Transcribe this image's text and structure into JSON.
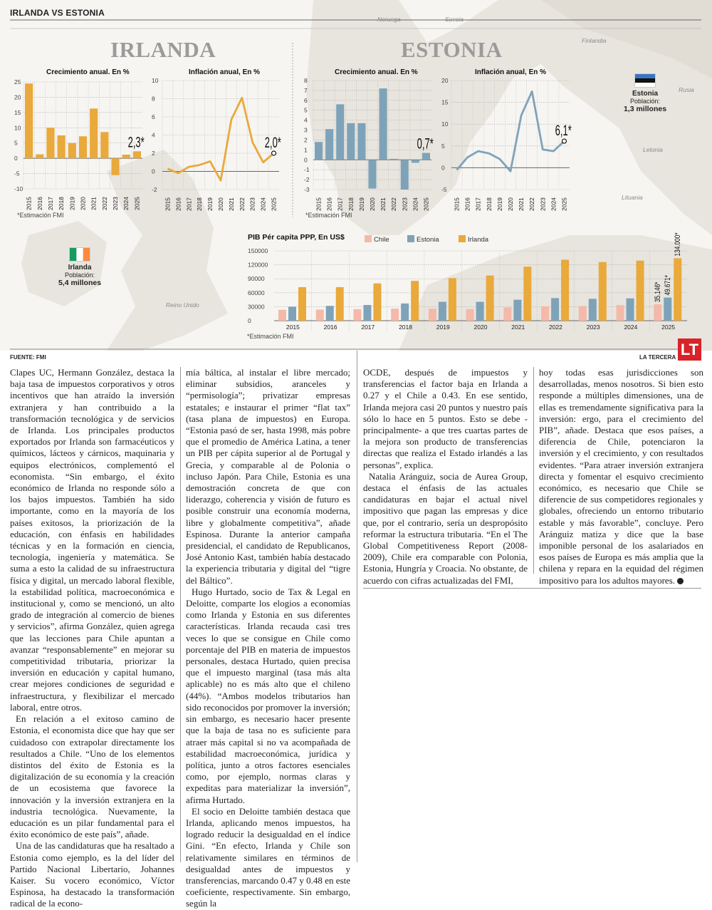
{
  "header": {
    "section": "IRLANDA VS ESTONIA",
    "left_title": "IRLANDA",
    "right_title": "ESTONIA"
  },
  "map_labels": {
    "norway": "Noruega",
    "sweden": "Suecia",
    "finland": "Finlandia",
    "russia": "Rusia",
    "latvia": "Letonia",
    "lithuania": "Lituania",
    "uk": "Reino Unido"
  },
  "estonia_box": {
    "name": "Estonia",
    "pop_label": "Población:",
    "pop_value": "1,3 millones"
  },
  "ireland_box": {
    "name": "Irlanda",
    "pop_label": "Población:",
    "pop_value": "5,4 millones"
  },
  "notes": {
    "irl": "*Estimación FMI",
    "est": "*Estimación FMI",
    "pib": "*Estimación FMI"
  },
  "footer": {
    "source": "FUENTE: FMI",
    "brand": "LA TERCERA",
    "logo": "LT"
  },
  "colors": {
    "irlanda": "#e9a93b",
    "estonia": "#7ea3b9",
    "chile": "#f5b9a9",
    "title_grey": "#9b9b9b",
    "logo_red": "#d8232a"
  },
  "chart_data": [
    {
      "id": "irl_growth",
      "type": "bar",
      "title": "Crecimiento anual. En %",
      "categories": [
        "2015",
        "2016",
        "2017",
        "2018",
        "2019",
        "2020",
        "2021",
        "2022",
        "2023",
        "2024",
        "2025"
      ],
      "values": [
        24.5,
        1.3,
        10,
        7.5,
        5,
        7.2,
        16.3,
        8.6,
        -5.5,
        1.2,
        2.3
      ],
      "ylim": [
        -10,
        25
      ],
      "yticks": [
        25,
        20,
        15,
        10,
        5,
        0,
        -5,
        -10
      ],
      "highlight_label": "2,3*",
      "color": "#e9a93b",
      "grid": true
    },
    {
      "id": "irl_infl",
      "type": "line",
      "title": "Inflación anual, En %",
      "categories": [
        "2015",
        "2016",
        "2017",
        "2018",
        "2019",
        "2020",
        "2021",
        "2022",
        "2023",
        "2024",
        "2025"
      ],
      "values": [
        0.3,
        -0.2,
        0.5,
        0.7,
        1.1,
        -1.0,
        5.7,
        8.1,
        3.2,
        1.0,
        2.0
      ],
      "ylim": [
        -2,
        10
      ],
      "yticks": [
        10,
        8,
        6,
        4,
        2,
        0,
        -2
      ],
      "highlight_label": "2,0*",
      "color": "#e9a93b",
      "grid": true
    },
    {
      "id": "est_growth",
      "type": "bar",
      "title": "Crecimiento anual. En %",
      "categories": [
        "2015",
        "2016",
        "2017",
        "2018",
        "2019",
        "2020",
        "2021",
        "2022",
        "2023",
        "2024",
        "2025"
      ],
      "values": [
        1.8,
        3.1,
        5.6,
        3.7,
        3.7,
        -2.9,
        7.2,
        0.1,
        -3.0,
        -0.3,
        0.7
      ],
      "ylim": [
        -3,
        8
      ],
      "yticks": [
        8,
        7,
        6,
        5,
        4,
        3,
        2,
        1,
        0,
        -1,
        -2,
        -3
      ],
      "highlight_label": "0,7*",
      "color": "#7ea3b9",
      "grid": true
    },
    {
      "id": "est_infl",
      "type": "line",
      "title": "Inflación anual, En %",
      "categories": [
        "2015",
        "2016",
        "2017",
        "2018",
        "2019",
        "2020",
        "2021",
        "2022",
        "2023",
        "2024",
        "2025"
      ],
      "values": [
        -0.5,
        2.4,
        3.8,
        3.3,
        2.0,
        -0.8,
        12.0,
        17.5,
        4.2,
        3.8,
        6.1
      ],
      "ylim": [
        -5,
        20
      ],
      "yticks": [
        20,
        15,
        10,
        5,
        0,
        -5
      ],
      "highlight_label": "6,1*",
      "color": "#7ea3b9",
      "grid": true
    },
    {
      "id": "pib",
      "type": "bar",
      "title": "PIB Pér capita PPP, En US$",
      "categories": [
        "2015",
        "2016",
        "2017",
        "2018",
        "2019",
        "2020",
        "2021",
        "2022",
        "2023",
        "2024",
        "2025"
      ],
      "ylim": [
        0,
        150000
      ],
      "yticks": [
        150000,
        120000,
        90000,
        60000,
        30000,
        0
      ],
      "legend_position": "top",
      "grid": true,
      "series": [
        {
          "name": "Chile",
          "color": "#f5b9a9",
          "values": [
            23500,
            23800,
            24800,
            26000,
            25800,
            25000,
            28500,
            31000,
            31500,
            33500,
            35146
          ],
          "last_label": "35.146*"
        },
        {
          "name": "Estonia",
          "color": "#7ea3b9",
          "values": [
            30000,
            31800,
            33700,
            37000,
            40500,
            40500,
            45000,
            48500,
            47000,
            48000,
            49671
          ],
          "last_label": "49.671*"
        },
        {
          "name": "Irlanda",
          "color": "#e9a93b",
          "values": [
            72000,
            72000,
            80000,
            85500,
            91500,
            97000,
            116000,
            131000,
            126000,
            129000,
            134000
          ],
          "last_label": "134.000*"
        }
      ]
    }
  ],
  "article": {
    "col1": [
      "Clapes UC, Hermann González, destaca la baja tasa de impuestos corporativos y otros incentivos que han atraído la inversión extranjera y han contribuido a la transformación tecnológica y de servicios de Irlanda. Los principales productos exportados por Irlanda son farmacéuticos y químicos, lácteos y cárnicos, maquinaria y equipos electrónicos, complementó el economista. “Sin embargo, el éxito económico de Irlanda no responde sólo a los bajos impuestos. También ha sido importante, como en la mayoría de los países exitosos, la priorización de la educación, con énfasis en habilidades técnicas y en la formación en ciencia, tecnología, ingeniería y matemática. Se suma a esto la calidad de su infraestructura física y digital, un mercado laboral flexible, la estabilidad política, macroeconómica e institucional y, como se mencionó, un alto grado de integración al comercio de bienes y servicios”, afirma González, quien agrega que las lecciones para Chile apuntan a avanzar “responsablemente” en mejorar su competitividad tributaria, priorizar la inversión en educación y capital humano, crear mejores condiciones de seguridad e infraestructura, y flexibilizar el mercado laboral, entre otros.",
      "En relación a el exitoso camino de Estonia, el economista dice que hay que ser cuidadoso con extrapolar directamente los resultados a Chile. “Uno de los elementos distintos del éxito de Estonia es la digitalización de su economía y la creación de un ecosistema que favorece la innovación y la inversión extranjera en la industria tecnológica. Nuevamente, la educación es un pilar fundamental para el éxito económico de este país”, añade.",
      "Una de las candidaturas que ha resaltado a Estonia como ejemplo, es la del líder del Partido Nacional Libertario, Johannes Kaiser. Su vocero económico, Víctor Espinosa, ha destacado la transformación radical de la econo-"
    ],
    "col2": [
      "mía báltica, al instalar el libre mercado; eliminar subsidios, aranceles y “permisología”; privatizar empresas estatales; e instaurar el primer “flat tax” (tasa plana de impuestos) en Europa. “Estonia pasó de ser, hasta 1998, más pobre que el promedio de América Latina, a tener un PIB per cápita superior al de Portugal y Grecia, y comparable al de Polonia o incluso Japón. Para Chile, Estonia es una demostración concreta de que con liderazgo, coherencia y visión de futuro es posible construir una economía moderna, libre y globalmente competitiva”, añade Espinosa. Durante la anterior campaña presidencial, el candidato de Republicanos, José Antonio Kast, también había destacado la experiencia tributaria y digital del “tigre del Báltico”.",
      "Hugo Hurtado, socio de Tax & Legal en Deloitte, comparte los elogios a economías como Irlanda y Estonia en sus diferentes características. Irlanda recauda casi tres veces lo que se consigue en Chile como porcentaje del PIB en materia de impuestos personales, destaca Hurtado, quien precisa que el impuesto marginal (tasa más alta aplicable) no es más alto que el chileno (44%). “Ambos modelos tributarios han sido reconocidos por promover la inversión; sin embargo, es necesario hacer presente que la baja de tasa no es suficiente para atraer más capital si no va acompañada de estabilidad macroeconómica, jurídica y política, junto a otros factores esenciales como, por ejemplo, normas claras y expeditas para materializar la inversión”, afirma Hurtado.",
      "El socio en Deloitte también destaca que Irlanda, aplicando menos impuestos, ha logrado reducir la desigualdad en el índice Gini. “En efecto, Irlanda y Chile son relativamente similares en términos de desigualdad antes de impuestos y transferencias, marcando 0.47 y 0.48 en este coeficiente, respectivamente. Sin embargo, según la"
    ],
    "col3": [
      "OCDE, después de impuestos y transferencias el factor baja en Irlanda a 0.27 y el Chile a 0.43. En ese sentido, Irlanda mejora casi 20 puntos y nuestro país sólo lo hace en 5 puntos. Esto se debe -principalmente- a que tres cuartas partes de la mejora son producto de transferencias directas que realiza el Estado irlandés a las personas”, explica.",
      "Natalia Aránguiz, socia de Aurea Group, destaca el énfasis de las actuales candidaturas en bajar el actual nivel impositivo que pagan las empresas y dice que, por el contrario, sería un despropósito reformar la estructura tributaria. “En el The Global Competitiveness Report (2008-2009), Chile era comparable con Polonia, Estonia, Hungría y Croacia. No obstante, de acuerdo con cifras actualizadas del FMI,"
    ],
    "col4": [
      "hoy todas esas jurisdicciones son desarrolladas, menos nosotros. Si bien esto responde a múltiples dimensiones, una de ellas es tremendamente significativa para la inversión: ergo, para el crecimiento del PIB”, añade. Destaca que esos países, a diferencia de Chile, potenciaron la inversión y el crecimiento, y con resultados evidentes. “Para atraer inversión extranjera directa y fomentar el esquivo crecimiento económico, es necesario que Chile se diferencie de sus competidores regionales y globales, ofreciendo un entorno tributario estable y más favorable”, concluye. Pero Aránguiz matiza y dice que la base imponible personal de los asalariados en esos países de Europa es más amplia que la chilena y repara en la equidad del régimen impositivo para los adultos mayores."
    ]
  }
}
